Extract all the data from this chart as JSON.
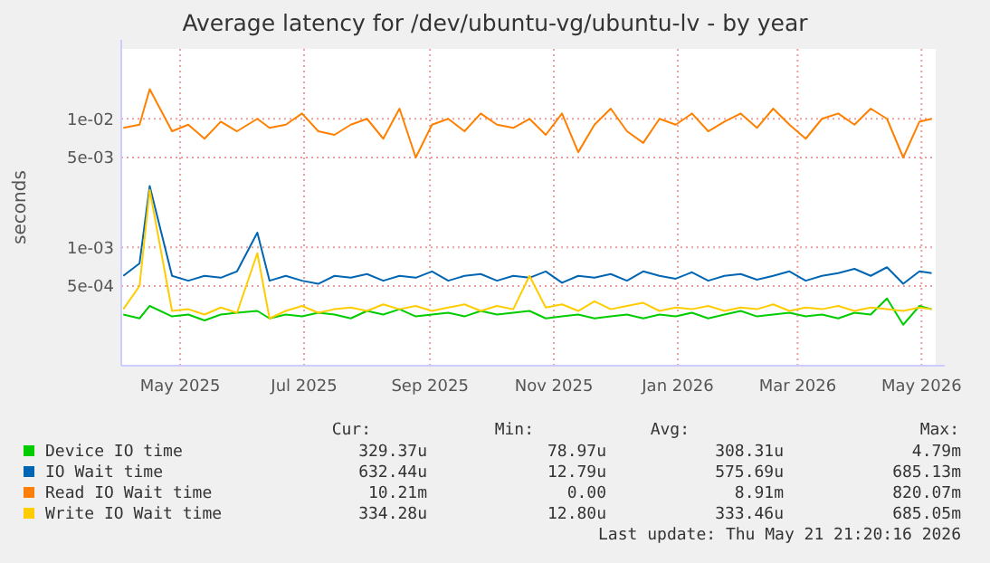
{
  "chart_data": {
    "type": "line",
    "title": "Average latency for /dev/ubuntu-vg/ubuntu-lv - by year",
    "ylabel": "seconds",
    "log": "y",
    "grid": true,
    "legend": "bottom",
    "marker": "none",
    "line_style": "solid",
    "xlim": [
      "2025-04-17",
      "2026-05-23"
    ],
    "xticks": [
      {
        "value": "2025-05-16",
        "label": "May 2025"
      },
      {
        "value": "2025-07-16",
        "label": "Jul 2025"
      },
      {
        "value": "2025-09-16",
        "label": "Sep 2025"
      },
      {
        "value": "2025-11-16",
        "label": "Nov 2025"
      },
      {
        "value": "2026-01-16",
        "label": "Jan 2026"
      },
      {
        "value": "2026-03-16",
        "label": "Mar 2026"
      },
      {
        "value": "2026-05-16",
        "label": "May 2026"
      }
    ],
    "ylim": [
      0.00012,
      0.035
    ],
    "yticks": [
      {
        "value": 0.0005,
        "label": "5e-04"
      },
      {
        "value": 0.001,
        "label": "1e-03"
      },
      {
        "value": 0.005,
        "label": "5e-03"
      },
      {
        "value": 0.01,
        "label": "1e-02"
      }
    ],
    "x": [
      "2025-04-18",
      "2025-04-26",
      "2025-05-01",
      "2025-05-12",
      "2025-05-20",
      "2025-05-28",
      "2025-06-05",
      "2025-06-13",
      "2025-06-23",
      "2025-06-29",
      "2025-07-07",
      "2025-07-15",
      "2025-07-23",
      "2025-07-31",
      "2025-08-08",
      "2025-08-16",
      "2025-08-24",
      "2025-09-01",
      "2025-09-09",
      "2025-09-17",
      "2025-09-25",
      "2025-10-03",
      "2025-10-11",
      "2025-10-19",
      "2025-10-27",
      "2025-11-04",
      "2025-11-12",
      "2025-11-20",
      "2025-11-28",
      "2025-12-06",
      "2025-12-14",
      "2025-12-22",
      "2025-12-30",
      "2026-01-07",
      "2026-01-15",
      "2026-01-23",
      "2026-01-31",
      "2026-02-08",
      "2026-02-16",
      "2026-02-24",
      "2026-03-04",
      "2026-03-12",
      "2026-03-20",
      "2026-03-28",
      "2026-04-05",
      "2026-04-13",
      "2026-04-21",
      "2026-04-29",
      "2026-05-07",
      "2026-05-15",
      "2026-05-21"
    ],
    "series": [
      {
        "name": "Device IO time",
        "color": "#00cc00",
        "values": [
          0.0003,
          0.00028,
          0.00035,
          0.00029,
          0.0003,
          0.00027,
          0.0003,
          0.00031,
          0.00032,
          0.00028,
          0.0003,
          0.00029,
          0.00031,
          0.0003,
          0.00028,
          0.00032,
          0.0003,
          0.00033,
          0.00029,
          0.0003,
          0.00031,
          0.00029,
          0.00032,
          0.0003,
          0.00031,
          0.00032,
          0.00028,
          0.00029,
          0.0003,
          0.00028,
          0.00029,
          0.0003,
          0.00028,
          0.0003,
          0.00029,
          0.00031,
          0.00028,
          0.0003,
          0.00032,
          0.00029,
          0.0003,
          0.00031,
          0.00029,
          0.0003,
          0.00028,
          0.00031,
          0.0003,
          0.0004,
          0.00025,
          0.00035,
          0.00033
        ]
      },
      {
        "name": "IO Wait time",
        "color": "#0066b3",
        "values": [
          0.0006,
          0.00075,
          0.003,
          0.0006,
          0.00055,
          0.0006,
          0.00058,
          0.00065,
          0.0013,
          0.00055,
          0.0006,
          0.00055,
          0.00052,
          0.0006,
          0.00058,
          0.00062,
          0.00055,
          0.0006,
          0.00058,
          0.00065,
          0.00055,
          0.0006,
          0.00062,
          0.00055,
          0.0006,
          0.00058,
          0.00065,
          0.00053,
          0.0006,
          0.00058,
          0.00062,
          0.00055,
          0.00065,
          0.0006,
          0.00057,
          0.00064,
          0.00055,
          0.0006,
          0.00062,
          0.00056,
          0.0006,
          0.00065,
          0.00055,
          0.0006,
          0.00063,
          0.00068,
          0.0006,
          0.0007,
          0.00052,
          0.00065,
          0.00063
        ]
      },
      {
        "name": "Read IO Wait time",
        "color": "#ff8000",
        "values": [
          0.0085,
          0.009,
          0.017,
          0.008,
          0.009,
          0.007,
          0.0095,
          0.008,
          0.01,
          0.0085,
          0.009,
          0.011,
          0.008,
          0.0075,
          0.009,
          0.01,
          0.007,
          0.012,
          0.005,
          0.009,
          0.01,
          0.008,
          0.011,
          0.009,
          0.0085,
          0.01,
          0.0075,
          0.011,
          0.0055,
          0.009,
          0.012,
          0.008,
          0.0065,
          0.01,
          0.009,
          0.011,
          0.008,
          0.0095,
          0.011,
          0.0085,
          0.012,
          0.009,
          0.007,
          0.01,
          0.011,
          0.009,
          0.012,
          0.01,
          0.005,
          0.0095,
          0.01
        ]
      },
      {
        "name": "Write IO Wait time",
        "color": "#ffcc00",
        "values": [
          0.00033,
          0.0005,
          0.0028,
          0.00032,
          0.00033,
          0.0003,
          0.00034,
          0.00031,
          0.0009,
          0.00028,
          0.00032,
          0.00035,
          0.00031,
          0.00033,
          0.00034,
          0.00032,
          0.00036,
          0.00033,
          0.00035,
          0.00032,
          0.00034,
          0.00036,
          0.00032,
          0.00035,
          0.00033,
          0.0006,
          0.00034,
          0.00036,
          0.00032,
          0.00038,
          0.00033,
          0.00035,
          0.00037,
          0.00032,
          0.00034,
          0.00033,
          0.00035,
          0.00032,
          0.00034,
          0.00033,
          0.00036,
          0.00032,
          0.00034,
          0.00033,
          0.00035,
          0.00032,
          0.00034,
          0.00033,
          0.00032,
          0.00034,
          0.00033
        ]
      }
    ],
    "annotations": [
      "Cur:",
      "Min:",
      "Avg:",
      "Max:",
      "329.37u",
      "78.97u",
      "308.31u",
      "4.79m",
      "632.44u",
      "12.79u",
      "575.69u",
      "685.13m",
      "10.21m",
      "0.00",
      "8.91m",
      "820.07m",
      "334.28u",
      "12.80u",
      "333.46u",
      "685.05m",
      "Last update: Thu May 21 21:20:16 2026"
    ]
  }
}
